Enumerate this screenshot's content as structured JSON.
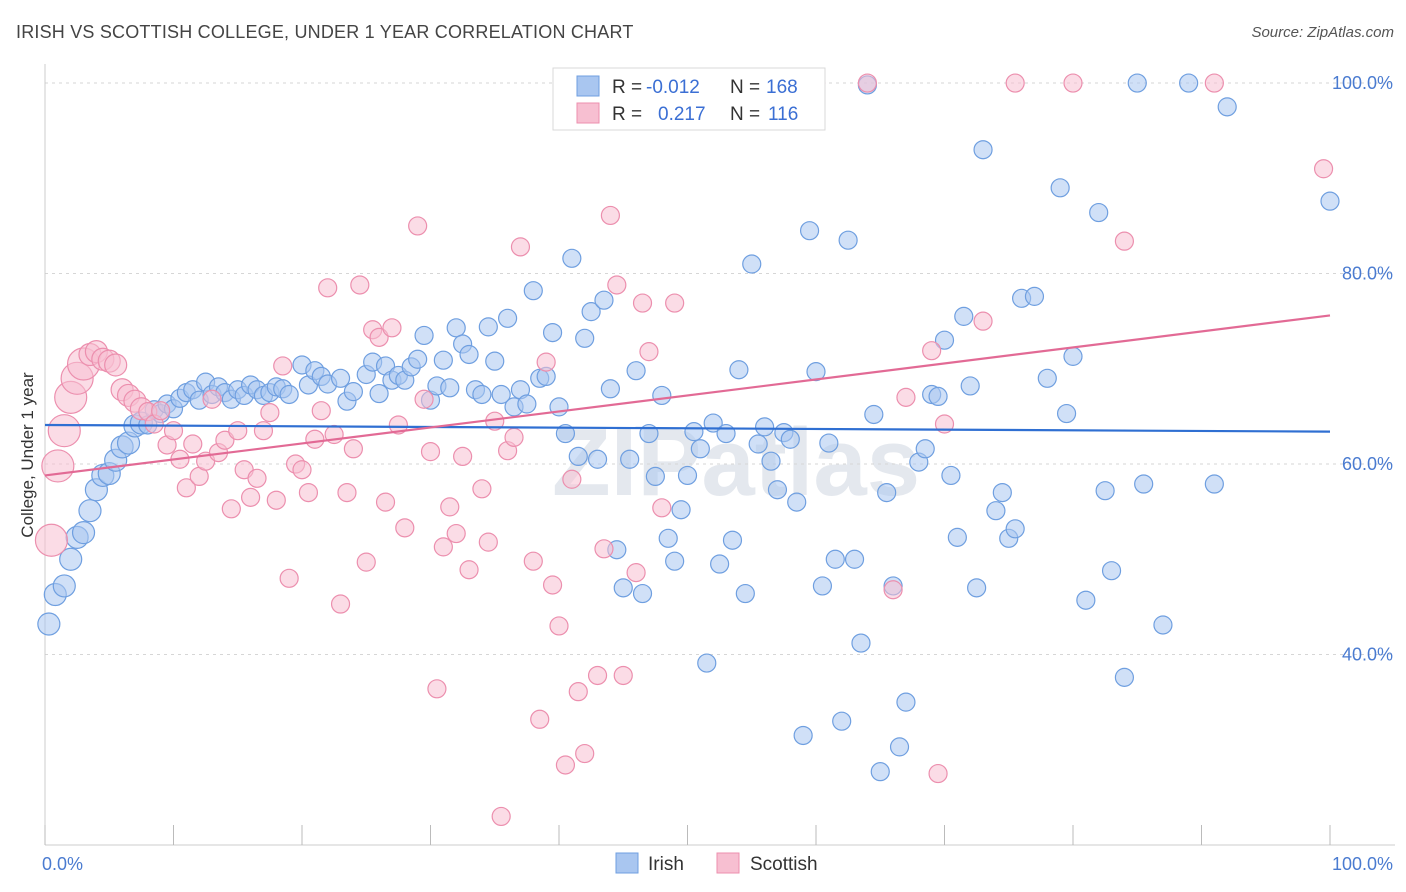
{
  "header": {
    "title": "IRISH VS SCOTTISH COLLEGE, UNDER 1 YEAR CORRELATION CHART",
    "source": "Source: ZipAtlas.com"
  },
  "watermark": "ZIPatlas",
  "chart_data": {
    "type": "scatter",
    "title": "IRISH VS SCOTTISH COLLEGE, UNDER 1 YEAR CORRELATION CHART",
    "ylabel": "College, Under 1 year",
    "xlabel": "",
    "xlim": [
      0,
      100
    ],
    "ylim": [
      20,
      102
    ],
    "x_tick_labels": [
      "0.0%",
      "100.0%"
    ],
    "y_ticks": [
      {
        "value": 100,
        "label": "100.0%"
      },
      {
        "value": 80,
        "label": "80.0%"
      },
      {
        "value": 60,
        "label": "60.0%"
      },
      {
        "value": 40,
        "label": "40.0%"
      }
    ],
    "grid": true,
    "legend_position": "bottom-center",
    "stats_box": [
      {
        "series": "Irish",
        "r_label": "R =",
        "r_value": "-0.012",
        "n_label": "N =",
        "n_value": "168"
      },
      {
        "series": "Scottish",
        "r_label": "R =",
        "r_value": "0.217",
        "n_label": "N =",
        "n_value": "116"
      }
    ],
    "series": [
      {
        "name": "Irish",
        "color": "#6f9fe0",
        "fill": "#a9c6f0",
        "trend": {
          "x": [
            0,
            100
          ],
          "y": [
            64.1,
            63.4
          ],
          "color": "#2f6fd2"
        },
        "points": [
          [
            0.3,
            43.2
          ],
          [
            0.8,
            46.3
          ],
          [
            1.5,
            47.2
          ],
          [
            2,
            50
          ],
          [
            2.5,
            52.3
          ],
          [
            3,
            52.8
          ],
          [
            3.5,
            55.1
          ],
          [
            4,
            57.3
          ],
          [
            4.5,
            58.8
          ],
          [
            5,
            59
          ],
          [
            5.5,
            60.4
          ],
          [
            6,
            61.8
          ],
          [
            6.5,
            62.2
          ],
          [
            7,
            64
          ],
          [
            7.5,
            64.3
          ],
          [
            8,
            64.1
          ],
          [
            8.5,
            65.7
          ],
          [
            9,
            65.3
          ],
          [
            9.5,
            66.3
          ],
          [
            10,
            65.8
          ],
          [
            10.5,
            66.9
          ],
          [
            11,
            67.5
          ],
          [
            11.5,
            67.8
          ],
          [
            12,
            66.7
          ],
          [
            12.5,
            68.6
          ],
          [
            13,
            67.3
          ],
          [
            13.5,
            68.1
          ],
          [
            14,
            67.5
          ],
          [
            14.5,
            66.8
          ],
          [
            15,
            67.8
          ],
          [
            15.5,
            67.2
          ],
          [
            16,
            68.3
          ],
          [
            16.5,
            67.8
          ],
          [
            17,
            67.2
          ],
          [
            17.5,
            67.5
          ],
          [
            18,
            68.1
          ],
          [
            18.5,
            67.9
          ],
          [
            19,
            67.3
          ],
          [
            20,
            70.4
          ],
          [
            20.5,
            68.3
          ],
          [
            21,
            69.8
          ],
          [
            21.5,
            69.2
          ],
          [
            22,
            68.4
          ],
          [
            23,
            69
          ],
          [
            23.5,
            66.6
          ],
          [
            24,
            67.6
          ],
          [
            25,
            69.4
          ],
          [
            25.5,
            70.7
          ],
          [
            26,
            67.4
          ],
          [
            26.5,
            70.3
          ],
          [
            27,
            68.8
          ],
          [
            27.5,
            69.3
          ],
          [
            28,
            68.8
          ],
          [
            28.5,
            70.2
          ],
          [
            29,
            71
          ],
          [
            29.5,
            73.5
          ],
          [
            30,
            66.7
          ],
          [
            30.5,
            68.2
          ],
          [
            31,
            70.9
          ],
          [
            31.5,
            68
          ],
          [
            32,
            74.3
          ],
          [
            32.5,
            72.6
          ],
          [
            33,
            71.5
          ],
          [
            33.5,
            67.8
          ],
          [
            34,
            67.3
          ],
          [
            34.5,
            74.4
          ],
          [
            35,
            70.8
          ],
          [
            35.5,
            67.3
          ],
          [
            36,
            75.3
          ],
          [
            36.5,
            66
          ],
          [
            37,
            67.8
          ],
          [
            37.5,
            66.3
          ],
          [
            38,
            78.2
          ],
          [
            38.5,
            69
          ],
          [
            39,
            69.2
          ],
          [
            39.5,
            73.8
          ],
          [
            40,
            66
          ],
          [
            40.5,
            63.2
          ],
          [
            41,
            81.6
          ],
          [
            41.5,
            60.8
          ],
          [
            42,
            73.2
          ],
          [
            42.5,
            76
          ],
          [
            43,
            60.5
          ],
          [
            43.5,
            77.2
          ],
          [
            44,
            67.9
          ],
          [
            44.5,
            51
          ],
          [
            45,
            47
          ],
          [
            45.5,
            60.5
          ],
          [
            46,
            69.8
          ],
          [
            46.5,
            46.4
          ],
          [
            47,
            63.2
          ],
          [
            47.5,
            58.7
          ],
          [
            48,
            67.2
          ],
          [
            48.5,
            52.2
          ],
          [
            49,
            49.8
          ],
          [
            49.5,
            55.2
          ],
          [
            50,
            58.8
          ],
          [
            50.5,
            63.4
          ],
          [
            51,
            61.6
          ],
          [
            51.5,
            39.1
          ],
          [
            52,
            64.3
          ],
          [
            52.5,
            49.5
          ],
          [
            53,
            63.2
          ],
          [
            53.5,
            52
          ],
          [
            54,
            69.9
          ],
          [
            54.5,
            46.4
          ],
          [
            55,
            81
          ],
          [
            55.5,
            62.1
          ],
          [
            56,
            63.9
          ],
          [
            56.5,
            60.3
          ],
          [
            57,
            57.3
          ],
          [
            57.5,
            63.3
          ],
          [
            58,
            62.6
          ],
          [
            58.5,
            56
          ],
          [
            59,
            31.5
          ],
          [
            59.5,
            84.5
          ],
          [
            60,
            69.7
          ],
          [
            60.5,
            47.2
          ],
          [
            61,
            62.2
          ],
          [
            61.5,
            50
          ],
          [
            62,
            33
          ],
          [
            62.5,
            83.5
          ],
          [
            63,
            50
          ],
          [
            63.5,
            41.2
          ],
          [
            64,
            99.8
          ],
          [
            64.5,
            65.2
          ],
          [
            65,
            27.7
          ],
          [
            65.5,
            57
          ],
          [
            66,
            47.2
          ],
          [
            66.5,
            30.3
          ],
          [
            67,
            35
          ],
          [
            68,
            60.2
          ],
          [
            68.5,
            61.6
          ],
          [
            69,
            67.3
          ],
          [
            69.5,
            67.1
          ],
          [
            70,
            73
          ],
          [
            70.5,
            58.8
          ],
          [
            71,
            52.3
          ],
          [
            71.5,
            75.5
          ],
          [
            72,
            68.2
          ],
          [
            72.5,
            47
          ],
          [
            73,
            93
          ],
          [
            74,
            55.1
          ],
          [
            74.5,
            57
          ],
          [
            75,
            52.2
          ],
          [
            75.5,
            53.2
          ],
          [
            76,
            77.4
          ],
          [
            77,
            77.6
          ],
          [
            78,
            69
          ],
          [
            79,
            89
          ],
          [
            79.5,
            65.3
          ],
          [
            80,
            71.3
          ],
          [
            81,
            45.7
          ],
          [
            82,
            86.4
          ],
          [
            82.5,
            57.2
          ],
          [
            83,
            48.8
          ],
          [
            84,
            37.6
          ],
          [
            85,
            100
          ],
          [
            85.5,
            57.9
          ],
          [
            87,
            43.1
          ],
          [
            89,
            100
          ],
          [
            91,
            57.9
          ],
          [
            92,
            97.5
          ],
          [
            100,
            87.6
          ]
        ]
      },
      {
        "name": "Scottish",
        "color": "#ec8fae",
        "fill": "#f7bfd1",
        "trend": {
          "x": [
            0,
            100
          ],
          "y": [
            58.8,
            75.6
          ],
          "color": "#e26a95"
        },
        "points": [
          [
            0.5,
            52
          ],
          [
            1,
            59.8
          ],
          [
            1.5,
            63.5
          ],
          [
            2,
            67
          ],
          [
            2.5,
            69
          ],
          [
            3,
            70.5
          ],
          [
            3.5,
            71.5
          ],
          [
            4,
            71.8
          ],
          [
            4.5,
            71
          ],
          [
            5,
            70.8
          ],
          [
            5.5,
            70.4
          ],
          [
            6,
            67.8
          ],
          [
            6.5,
            67.2
          ],
          [
            7,
            66.6
          ],
          [
            7.5,
            65.8
          ],
          [
            8,
            65.5
          ],
          [
            8.5,
            64.2
          ],
          [
            9,
            65.6
          ],
          [
            9.5,
            62
          ],
          [
            10,
            63.5
          ],
          [
            10.5,
            60.5
          ],
          [
            11,
            57.5
          ],
          [
            11.5,
            62.1
          ],
          [
            12,
            58.7
          ],
          [
            12.5,
            60.3
          ],
          [
            13,
            66.8
          ],
          [
            13.5,
            61.2
          ],
          [
            14,
            62.5
          ],
          [
            14.5,
            55.3
          ],
          [
            15,
            63.5
          ],
          [
            15.5,
            59.4
          ],
          [
            16,
            56.5
          ],
          [
            16.5,
            58.5
          ],
          [
            17,
            63.5
          ],
          [
            17.5,
            65.4
          ],
          [
            18,
            56.2
          ],
          [
            18.5,
            70.3
          ],
          [
            19,
            48
          ],
          [
            19.5,
            60
          ],
          [
            20,
            59.4
          ],
          [
            20.5,
            57
          ],
          [
            21,
            62.6
          ],
          [
            21.5,
            65.6
          ],
          [
            22,
            78.5
          ],
          [
            22.5,
            63.1
          ],
          [
            23,
            45.3
          ],
          [
            23.5,
            57
          ],
          [
            24,
            61.6
          ],
          [
            24.5,
            78.8
          ],
          [
            25,
            49.7
          ],
          [
            25.5,
            74.1
          ],
          [
            26,
            73.3
          ],
          [
            26.5,
            56
          ],
          [
            27,
            74.3
          ],
          [
            27.5,
            64.1
          ],
          [
            28,
            53.3
          ],
          [
            29,
            85
          ],
          [
            29.5,
            66.8
          ],
          [
            30,
            61.3
          ],
          [
            30.5,
            36.4
          ],
          [
            31,
            51.3
          ],
          [
            31.5,
            55.5
          ],
          [
            32,
            52.7
          ],
          [
            32.5,
            60.8
          ],
          [
            33,
            48.9
          ],
          [
            34,
            57.4
          ],
          [
            34.5,
            51.8
          ],
          [
            35,
            64.5
          ],
          [
            35.5,
            23
          ],
          [
            36,
            61.4
          ],
          [
            36.5,
            62.8
          ],
          [
            37,
            82.8
          ],
          [
            38,
            49.8
          ],
          [
            38.5,
            33.2
          ],
          [
            39,
            70.7
          ],
          [
            39.5,
            47.3
          ],
          [
            40,
            43
          ],
          [
            40.5,
            28.4
          ],
          [
            41,
            58.4
          ],
          [
            41.5,
            36.1
          ],
          [
            42,
            29.6
          ],
          [
            43,
            37.8
          ],
          [
            43.5,
            51.1
          ],
          [
            44,
            86.1
          ],
          [
            44.5,
            78.8
          ],
          [
            45,
            37.8
          ],
          [
            46,
            48.6
          ],
          [
            46.5,
            76.9
          ],
          [
            47,
            71.8
          ],
          [
            48,
            55.4
          ],
          [
            49,
            76.9
          ],
          [
            50,
            99.8
          ],
          [
            51,
            99.8
          ],
          [
            52,
            100
          ],
          [
            60,
            100
          ],
          [
            64,
            100
          ],
          [
            66,
            46.8
          ],
          [
            67,
            67
          ],
          [
            69,
            71.9
          ],
          [
            69.5,
            27.5
          ],
          [
            70,
            64.2
          ],
          [
            73,
            75
          ],
          [
            75.5,
            100
          ],
          [
            80,
            100
          ],
          [
            84,
            83.4
          ],
          [
            91,
            100
          ],
          [
            99.5,
            91
          ]
        ]
      }
    ]
  },
  "legend": {
    "items": [
      {
        "label": "Irish",
        "color": "#a9c6f0",
        "border": "#6f9fe0"
      },
      {
        "label": "Scottish",
        "color": "#f7bfd1",
        "border": "#ec8fae"
      }
    ]
  }
}
